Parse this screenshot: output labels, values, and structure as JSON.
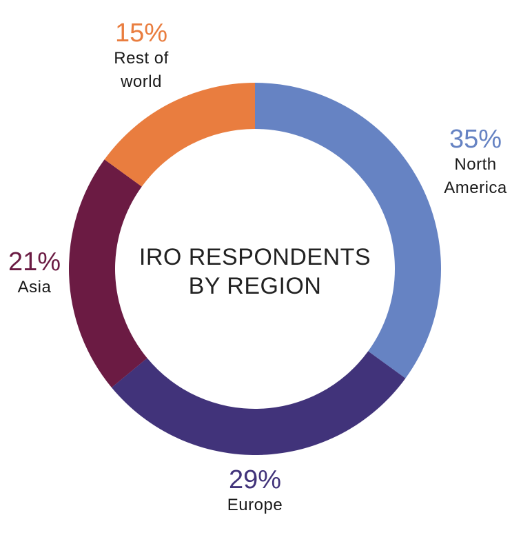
{
  "chart_data": {
    "type": "pie",
    "title": "IRO RESPONDENTS BY REGION",
    "title_lines": [
      "IRO RESPONDENTS",
      "BY REGION"
    ],
    "donut": true,
    "slices": [
      {
        "label": "North America",
        "label_lines": [
          "North",
          "America"
        ],
        "value": 35,
        "pct_label": "35%",
        "color": "#6683c3"
      },
      {
        "label": "Europe",
        "label_lines": [
          "Europe"
        ],
        "value": 29,
        "pct_label": "29%",
        "color": "#41337a"
      },
      {
        "label": "Asia",
        "label_lines": [
          "Asia"
        ],
        "value": 21,
        "pct_label": "21%",
        "color": "#6b1b43"
      },
      {
        "label": "Rest of world",
        "label_lines": [
          "Rest of",
          "world"
        ],
        "value": 15,
        "pct_label": "15%",
        "color": "#e97d3f"
      }
    ]
  }
}
